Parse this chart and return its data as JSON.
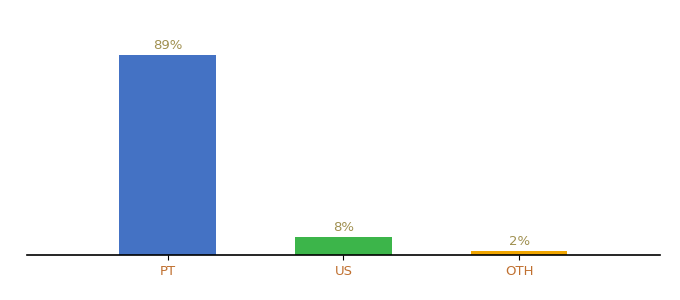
{
  "categories": [
    "PT",
    "US",
    "OTH"
  ],
  "values": [
    89,
    8,
    2
  ],
  "labels": [
    "89%",
    "8%",
    "2%"
  ],
  "bar_colors": [
    "#4472c4",
    "#3cb54a",
    "#f0a500"
  ],
  "background_color": "#ffffff",
  "ylim": [
    0,
    100
  ],
  "bar_width": 0.55,
  "label_fontsize": 9.5,
  "tick_fontsize": 9.5,
  "label_color": "#a09050",
  "tick_color": "#c07030",
  "x_positions": [
    1,
    2,
    3
  ],
  "xlim": [
    0.2,
    3.8
  ]
}
